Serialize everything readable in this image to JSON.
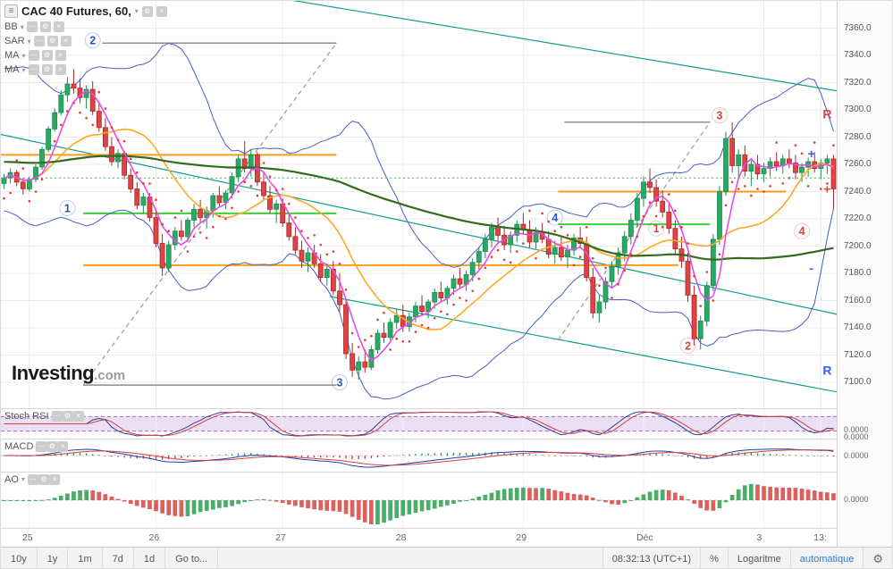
{
  "legend": {
    "title": "CAC 40 Futures, 60,",
    "indicators": [
      "BB",
      "SAR",
      "MA",
      "MA"
    ]
  },
  "icons": {
    "menu": "≡",
    "caret": "▾",
    "settings": "⚙",
    "close": "×",
    "more": "⋯",
    "gear": "⚙"
  },
  "panels": {
    "stoch": {
      "label": "Stoch RSI",
      "axis_labels": [
        "0.0000",
        "0.0000"
      ]
    },
    "macd": {
      "label": "MACD",
      "axis_labels": [
        "0.0000"
      ]
    },
    "ao": {
      "label": "AO",
      "axis_labels": [
        "0.0000"
      ]
    }
  },
  "watermark": {
    "brand": "Investing",
    "suffix": ".com"
  },
  "toolbar": {
    "ranges": [
      "10y",
      "1y",
      "1m",
      "7d",
      "1d"
    ],
    "goto_label": "Go to...",
    "clock": "08:32:13 (UTC+1)",
    "percent_label": "%",
    "scale_label": "Logaritme",
    "auto_label": "automatique"
  },
  "colors": {
    "candle_up": "#2aa866",
    "candle_up_border": "#1e8c4f",
    "candle_down": "#e04343",
    "candle_down_border": "#a82a2a",
    "bollinger": "#4a5fc1",
    "ma_fast": "#e84ae8",
    "ma_mid": "#ffa726",
    "ma_slow": "#336b1f",
    "sar": "#e53935",
    "channel": "#0f9d8f",
    "accent_blue": "#2757c4",
    "accent_red": "#d64541"
  },
  "chart_data": {
    "type": "candlestick",
    "symbol": "CAC 40 Futures",
    "interval": "60",
    "title": "CAC 40 Futures, 60,",
    "price_axis": [
      "7360.0",
      "7340.0",
      "7320.0",
      "7300.0",
      "7280.0",
      "7260.0",
      "7240.0",
      "7220.0",
      "7200.0",
      "7180.0",
      "7160.0",
      "7140.0",
      "7120.0",
      "7100.0"
    ],
    "ylim": [
      7081,
      7380
    ],
    "time_ticks": [
      {
        "label": "25",
        "i": 4
      },
      {
        "label": "26",
        "i": 24
      },
      {
        "label": "27",
        "i": 44
      },
      {
        "label": "28",
        "i": 63
      },
      {
        "label": "29",
        "i": 82
      },
      {
        "label": "Déc",
        "i": 101
      },
      {
        "label": "3",
        "i": 120
      },
      {
        "label": "13:",
        "i": 129
      }
    ],
    "candles": [
      [
        7246,
        7253,
        7242,
        7250
      ],
      [
        7250,
        7257,
        7246,
        7254
      ],
      [
        7254,
        7256,
        7244,
        7247
      ],
      [
        7247,
        7250,
        7238,
        7242
      ],
      [
        7242,
        7251,
        7240,
        7249
      ],
      [
        7249,
        7260,
        7247,
        7258
      ],
      [
        7258,
        7273,
        7256,
        7271
      ],
      [
        7271,
        7288,
        7269,
        7286
      ],
      [
        7286,
        7301,
        7284,
        7298
      ],
      [
        7298,
        7314,
        7296,
        7311
      ],
      [
        7311,
        7324,
        7306,
        7319
      ],
      [
        7319,
        7330,
        7312,
        7316
      ],
      [
        7316,
        7323,
        7305,
        7309
      ],
      [
        7309,
        7318,
        7301,
        7315
      ],
      [
        7315,
        7321,
        7296,
        7299
      ],
      [
        7299,
        7306,
        7284,
        7287
      ],
      [
        7287,
        7294,
        7270,
        7273
      ],
      [
        7273,
        7280,
        7259,
        7262
      ],
      [
        7262,
        7271,
        7257,
        7268
      ],
      [
        7268,
        7270,
        7249,
        7252
      ],
      [
        7252,
        7257,
        7239,
        7242
      ],
      [
        7242,
        7247,
        7227,
        7230
      ],
      [
        7230,
        7239,
        7224,
        7236
      ],
      [
        7236,
        7239,
        7218,
        7221
      ],
      [
        7221,
        7227,
        7199,
        7202
      ],
      [
        7202,
        7209,
        7178,
        7184
      ],
      [
        7184,
        7204,
        7181,
        7201
      ],
      [
        7201,
        7214,
        7197,
        7211
      ],
      [
        7211,
        7219,
        7204,
        7207
      ],
      [
        7207,
        7221,
        7203,
        7219
      ],
      [
        7219,
        7231,
        7214,
        7227
      ],
      [
        7227,
        7234,
        7217,
        7221
      ],
      [
        7221,
        7229,
        7213,
        7226
      ],
      [
        7226,
        7239,
        7221,
        7237
      ],
      [
        7237,
        7244,
        7229,
        7232
      ],
      [
        7232,
        7241,
        7227,
        7239
      ],
      [
        7239,
        7254,
        7235,
        7251
      ],
      [
        7251,
        7267,
        7247,
        7264
      ],
      [
        7264,
        7277,
        7254,
        7257
      ],
      [
        7257,
        7271,
        7251,
        7267
      ],
      [
        7267,
        7269,
        7244,
        7247
      ],
      [
        7247,
        7254,
        7234,
        7237
      ],
      [
        7237,
        7244,
        7224,
        7227
      ],
      [
        7227,
        7234,
        7217,
        7231
      ],
      [
        7231,
        7235,
        7214,
        7217
      ],
      [
        7217,
        7224,
        7204,
        7207
      ],
      [
        7207,
        7214,
        7194,
        7197
      ],
      [
        7197,
        7204,
        7184,
        7189
      ],
      [
        7189,
        7199,
        7181,
        7195
      ],
      [
        7195,
        7201,
        7184,
        7187
      ],
      [
        7187,
        7194,
        7174,
        7177
      ],
      [
        7177,
        7187,
        7171,
        7183
      ],
      [
        7183,
        7189,
        7164,
        7167
      ],
      [
        7167,
        7180,
        7152,
        7157
      ],
      [
        7157,
        7161,
        7117,
        7121
      ],
      [
        7121,
        7129,
        7104,
        7109
      ],
      [
        7109,
        7119,
        7102,
        7115
      ],
      [
        7115,
        7124,
        7107,
        7111
      ],
      [
        7111,
        7127,
        7109,
        7124
      ],
      [
        7124,
        7139,
        7121,
        7136
      ],
      [
        7136,
        7144,
        7129,
        7133
      ],
      [
        7133,
        7147,
        7131,
        7144
      ],
      [
        7144,
        7154,
        7139,
        7149
      ],
      [
        7149,
        7157,
        7137,
        7141
      ],
      [
        7141,
        7151,
        7137,
        7148
      ],
      [
        7148,
        7159,
        7144,
        7156
      ],
      [
        7156,
        7164,
        7149,
        7152
      ],
      [
        7152,
        7161,
        7147,
        7159
      ],
      [
        7159,
        7169,
        7154,
        7166
      ],
      [
        7166,
        7174,
        7159,
        7162
      ],
      [
        7162,
        7171,
        7157,
        7169
      ],
      [
        7169,
        7179,
        7164,
        7176
      ],
      [
        7176,
        7184,
        7169,
        7172
      ],
      [
        7172,
        7182,
        7167,
        7179
      ],
      [
        7179,
        7191,
        7174,
        7188
      ],
      [
        7188,
        7199,
        7183,
        7196
      ],
      [
        7196,
        7209,
        7191,
        7205
      ],
      [
        7205,
        7217,
        7199,
        7214
      ],
      [
        7214,
        7221,
        7204,
        7208
      ],
      [
        7208,
        7215,
        7197,
        7201
      ],
      [
        7201,
        7211,
        7195,
        7208
      ],
      [
        7208,
        7219,
        7203,
        7216
      ],
      [
        7216,
        7224,
        7209,
        7212
      ],
      [
        7212,
        7219,
        7199,
        7203
      ],
      [
        7203,
        7214,
        7198,
        7210
      ],
      [
        7210,
        7217,
        7202,
        7205
      ],
      [
        7205,
        7211,
        7191,
        7194
      ],
      [
        7194,
        7204,
        7187,
        7199
      ],
      [
        7199,
        7207,
        7189,
        7192
      ],
      [
        7192,
        7201,
        7184,
        7197
      ],
      [
        7197,
        7209,
        7193,
        7206
      ],
      [
        7206,
        7214,
        7199,
        7202
      ],
      [
        7202,
        7207,
        7174,
        7177
      ],
      [
        7177,
        7184,
        7147,
        7151
      ],
      [
        7151,
        7164,
        7144,
        7159
      ],
      [
        7159,
        7177,
        7154,
        7174
      ],
      [
        7174,
        7189,
        7169,
        7185
      ],
      [
        7185,
        7199,
        7179,
        7195
      ],
      [
        7195,
        7211,
        7189,
        7207
      ],
      [
        7207,
        7224,
        7201,
        7219
      ],
      [
        7219,
        7239,
        7214,
        7235
      ],
      [
        7235,
        7251,
        7229,
        7247
      ],
      [
        7247,
        7257,
        7239,
        7243
      ],
      [
        7243,
        7249,
        7229,
        7233
      ],
      [
        7233,
        7241,
        7221,
        7225
      ],
      [
        7225,
        7231,
        7209,
        7213
      ],
      [
        7213,
        7219,
        7194,
        7198
      ],
      [
        7198,
        7207,
        7184,
        7189
      ],
      [
        7189,
        7195,
        7159,
        7164
      ],
      [
        7164,
        7171,
        7127,
        7132
      ],
      [
        7132,
        7149,
        7124,
        7145
      ],
      [
        7145,
        7174,
        7141,
        7171
      ],
      [
        7171,
        7209,
        7167,
        7205
      ],
      [
        7205,
        7244,
        7201,
        7240
      ],
      [
        7240,
        7284,
        7237,
        7279
      ],
      [
        7279,
        7291,
        7254,
        7259
      ],
      [
        7259,
        7271,
        7249,
        7267
      ],
      [
        7267,
        7274,
        7251,
        7255
      ],
      [
        7255,
        7263,
        7244,
        7260
      ],
      [
        7260,
        7267,
        7249,
        7253
      ],
      [
        7253,
        7261,
        7247,
        7257
      ],
      [
        7257,
        7265,
        7251,
        7262
      ],
      [
        7262,
        7269,
        7255,
        7259
      ],
      [
        7259,
        7267,
        7253,
        7264
      ],
      [
        7264,
        7271,
        7257,
        7261
      ],
      [
        7261,
        7267,
        7249,
        7254
      ],
      [
        7254,
        7261,
        7247,
        7258
      ],
      [
        7258,
        7265,
        7251,
        7262
      ],
      [
        7262,
        7269,
        7254,
        7257
      ],
      [
        7257,
        7264,
        7249,
        7261
      ],
      [
        7261,
        7267,
        7253,
        7264
      ],
      [
        7264,
        7267,
        7227,
        7242
      ]
    ],
    "drawings": [
      {
        "name": "channel-upper",
        "color": "#0f9d8f",
        "w": 1.2,
        "i1": 0,
        "p1": 7416,
        "i2": 132,
        "p2": 7314
      },
      {
        "name": "channel-mid",
        "color": "#0f9d8f",
        "w": 1.2,
        "i1": 0,
        "p1": 7282,
        "i2": 132,
        "p2": 7150
      },
      {
        "name": "channel-lower",
        "color": "#0f9d8f",
        "w": 1.2,
        "i1": 52,
        "p1": 7163,
        "i2": 132,
        "p2": 7093
      },
      {
        "name": "hline-orange-1",
        "color": "#ff9b1b",
        "w": 2,
        "i1": 0,
        "p1": 7267,
        "i2": 53,
        "p2": 7267
      },
      {
        "name": "hline-orange-2",
        "color": "#ff9b1b",
        "w": 2,
        "i1": 13,
        "p1": 7186,
        "i2": 107,
        "p2": 7186
      },
      {
        "name": "hline-orange-3",
        "color": "#ff9b1b",
        "w": 2,
        "i1": 88,
        "p1": 7240,
        "i2": 124,
        "p2": 7240
      },
      {
        "name": "hline-green-1",
        "color": "#3bd23b",
        "w": 2,
        "i1": 13,
        "p1": 7224,
        "i2": 53,
        "p2": 7224
      },
      {
        "name": "hline-green-2",
        "color": "#3bd23b",
        "w": 2,
        "i1": 88,
        "p1": 7216,
        "i2": 112,
        "p2": 7216
      },
      {
        "name": "hline-gray-top",
        "color": "#8f8f8f",
        "w": 1.5,
        "i1": 16,
        "p1": 7349,
        "i2": 53,
        "p2": 7349
      },
      {
        "name": "hline-gray-mid",
        "color": "#8f8f8f",
        "w": 1.5,
        "i1": 89,
        "p1": 7291,
        "i2": 112,
        "p2": 7291
      },
      {
        "name": "hline-gray-bottom",
        "color": "#8f8f8f",
        "w": 1.5,
        "i1": 13,
        "p1": 7098,
        "i2": 53,
        "p2": 7098
      },
      {
        "name": "trend-dashed-1",
        "color": "#9a9a9a",
        "w": 1.2,
        "dash": "5,4",
        "i1": 13,
        "p1": 7098,
        "i2": 53,
        "p2": 7349
      },
      {
        "name": "trend-dashed-2",
        "color": "#9a9a9a",
        "w": 1.2,
        "dash": "5,4",
        "i1": 88,
        "p1": 7131,
        "i2": 112,
        "p2": 7291
      },
      {
        "name": "price-dotted",
        "color": "#4caf50",
        "w": 1,
        "dash": "2,3",
        "i1": 0,
        "p1": 7250,
        "i2": 132,
        "p2": 7250
      }
    ],
    "wave_labels": [
      {
        "text": "2",
        "color": "#2757c4",
        "i": 14,
        "p": 7351
      },
      {
        "text": "1",
        "color": "#2757c4",
        "i": 10,
        "p": 7228
      },
      {
        "text": "3",
        "color": "#2757c4",
        "i": 53,
        "p": 7100
      },
      {
        "text": "4",
        "color": "#2757c4",
        "i": 87,
        "p": 7221
      },
      {
        "text": "3",
        "color": "#d64541",
        "i": 113,
        "p": 7296
      },
      {
        "text": "2",
        "color": "#d64541",
        "i": 108,
        "p": 7127
      },
      {
        "text": "1",
        "color": "#d64541",
        "i": 103,
        "p": 7213
      },
      {
        "text": "4",
        "color": "#d64541",
        "i": 126,
        "p": 7211
      }
    ],
    "edge_labels": [
      {
        "text": "R",
        "color": "#d64541",
        "i": 130,
        "p": 7297
      },
      {
        "text": "+",
        "color": "#2962ff",
        "i": 127.5,
        "p": 7268
      },
      {
        "text": "+",
        "color": "#e53935",
        "i": 130,
        "p": 7242
      },
      {
        "text": "-",
        "color": "#2962ff",
        "i": 127.5,
        "p": 7184
      },
      {
        "text": "R",
        "color": "#2962ff",
        "i": 130,
        "p": 7109
      }
    ]
  }
}
